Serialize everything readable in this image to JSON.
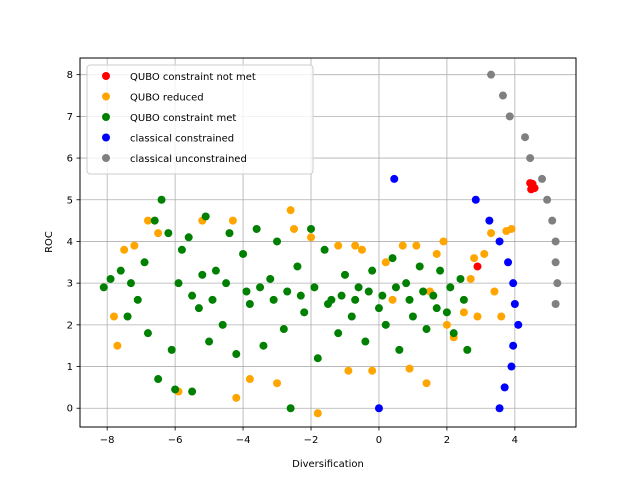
{
  "chart_data": {
    "type": "scatter",
    "xlabel": "Diversification",
    "ylabel": "ROC",
    "xlim": [
      -8.8,
      5.8
    ],
    "ylim": [
      -0.45,
      8.4
    ],
    "x_ticks": [
      -8,
      -6,
      -4,
      -2,
      0,
      2,
      4
    ],
    "x_tick_labels": [
      "−8",
      "−6",
      "−4",
      "−2",
      "0",
      "2",
      "4"
    ],
    "y_ticks": [
      0,
      1,
      2,
      3,
      4,
      5,
      6,
      7,
      8
    ],
    "y_tick_labels": [
      "0",
      "1",
      "2",
      "3",
      "4",
      "5",
      "6",
      "7",
      "8"
    ],
    "grid": true,
    "legend_position": "top-left",
    "series": [
      {
        "name": "QUBO constraint not met",
        "color": "#ff0000",
        "points": [
          [
            2.9,
            3.4
          ],
          [
            4.45,
            5.4
          ],
          [
            4.5,
            5.35
          ],
          [
            4.55,
            5.3
          ],
          [
            4.48,
            5.25
          ],
          [
            4.52,
            5.38
          ],
          [
            4.58,
            5.28
          ]
        ]
      },
      {
        "name": "QUBO reduced",
        "color": "#ffa500",
        "points": [
          [
            -7.8,
            2.2
          ],
          [
            -7.7,
            1.5
          ],
          [
            -7.5,
            3.8
          ],
          [
            -7.2,
            3.9
          ],
          [
            -6.8,
            4.5
          ],
          [
            -6.5,
            4.2
          ],
          [
            -5.9,
            0.4
          ],
          [
            -5.2,
            4.5
          ],
          [
            -4.3,
            4.5
          ],
          [
            -4.2,
            0.25
          ],
          [
            -3.8,
            0.7
          ],
          [
            -2.6,
            4.75
          ],
          [
            -2.5,
            4.3
          ],
          [
            -1.8,
            -0.12
          ],
          [
            -1.2,
            3.9
          ],
          [
            -0.9,
            0.9
          ],
          [
            -0.7,
            3.9
          ],
          [
            -0.5,
            3.8
          ],
          [
            -0.2,
            0.9
          ],
          [
            0.2,
            3.5
          ],
          [
            0.7,
            3.9
          ],
          [
            0.9,
            0.95
          ],
          [
            1.1,
            3.9
          ],
          [
            1.4,
            0.6
          ],
          [
            1.7,
            3.7
          ],
          [
            1.9,
            4.0
          ],
          [
            2.2,
            1.7
          ],
          [
            2.5,
            2.3
          ],
          [
            2.8,
            3.6
          ],
          [
            2.9,
            2.2
          ],
          [
            3.1,
            3.7
          ],
          [
            3.3,
            4.2
          ],
          [
            3.4,
            2.8
          ],
          [
            3.6,
            2.2
          ],
          [
            3.75,
            4.25
          ],
          [
            3.9,
            4.3
          ],
          [
            -3.0,
            0.6
          ],
          [
            -2.0,
            4.1
          ],
          [
            0.4,
            2.6
          ],
          [
            1.5,
            2.8
          ],
          [
            2.0,
            2.0
          ],
          [
            2.7,
            3.1
          ]
        ]
      },
      {
        "name": "QUBO constraint met",
        "color": "#008000",
        "points": [
          [
            -8.1,
            2.9
          ],
          [
            -7.9,
            3.1
          ],
          [
            -7.6,
            3.3
          ],
          [
            -7.4,
            2.2
          ],
          [
            -7.3,
            3.0
          ],
          [
            -7.1,
            2.6
          ],
          [
            -6.9,
            3.5
          ],
          [
            -6.8,
            1.8
          ],
          [
            -6.6,
            4.5
          ],
          [
            -6.5,
            0.7
          ],
          [
            -6.4,
            5.0
          ],
          [
            -6.2,
            4.2
          ],
          [
            -6.1,
            1.4
          ],
          [
            -6.0,
            0.45
          ],
          [
            -5.8,
            3.8
          ],
          [
            -5.6,
            4.1
          ],
          [
            -5.5,
            0.4
          ],
          [
            -5.3,
            2.4
          ],
          [
            -5.1,
            4.6
          ],
          [
            -5.0,
            1.6
          ],
          [
            -4.8,
            3.3
          ],
          [
            -4.6,
            2.0
          ],
          [
            -4.4,
            4.2
          ],
          [
            -4.2,
            1.3
          ],
          [
            -4.0,
            3.7
          ],
          [
            -3.8,
            2.5
          ],
          [
            -3.6,
            4.3
          ],
          [
            -3.4,
            1.5
          ],
          [
            -3.2,
            3.1
          ],
          [
            -3.0,
            4.0
          ],
          [
            -2.8,
            1.9
          ],
          [
            -2.6,
            0.0
          ],
          [
            -2.4,
            3.4
          ],
          [
            -2.2,
            2.3
          ],
          [
            -2.0,
            4.3
          ],
          [
            -1.8,
            1.2
          ],
          [
            -1.6,
            3.8
          ],
          [
            -1.4,
            2.6
          ],
          [
            -1.2,
            1.8
          ],
          [
            -1.0,
            3.2
          ],
          [
            -0.8,
            2.2
          ],
          [
            -0.6,
            2.9
          ],
          [
            -0.4,
            1.6
          ],
          [
            -0.2,
            3.3
          ],
          [
            0.0,
            2.4
          ],
          [
            0.2,
            2.0
          ],
          [
            0.4,
            3.6
          ],
          [
            0.6,
            1.4
          ],
          [
            0.8,
            3.0
          ],
          [
            1.0,
            2.2
          ],
          [
            1.2,
            3.4
          ],
          [
            1.4,
            1.9
          ],
          [
            1.6,
            2.7
          ],
          [
            1.8,
            3.3
          ],
          [
            2.0,
            2.3
          ],
          [
            2.2,
            1.8
          ],
          [
            2.4,
            3.1
          ],
          [
            2.6,
            1.4
          ],
          [
            -5.9,
            3.0
          ],
          [
            -5.5,
            2.7
          ],
          [
            -5.2,
            3.2
          ],
          [
            -4.9,
            2.6
          ],
          [
            -4.5,
            3.0
          ],
          [
            -3.9,
            2.8
          ],
          [
            -3.5,
            2.9
          ],
          [
            -3.1,
            2.6
          ],
          [
            -2.7,
            2.8
          ],
          [
            -2.3,
            2.7
          ],
          [
            -1.9,
            2.9
          ],
          [
            -1.5,
            2.5
          ],
          [
            -1.1,
            2.7
          ],
          [
            -0.7,
            2.6
          ],
          [
            -0.3,
            2.8
          ],
          [
            0.1,
            2.7
          ],
          [
            0.5,
            2.9
          ],
          [
            0.9,
            2.6
          ],
          [
            1.3,
            2.8
          ],
          [
            1.7,
            2.4
          ],
          [
            2.1,
            2.9
          ],
          [
            2.5,
            2.6
          ]
        ]
      },
      {
        "name": "classical constrained",
        "color": "#0000ff",
        "points": [
          [
            0.0,
            0.0
          ],
          [
            0.45,
            5.5
          ],
          [
            2.85,
            5.0
          ],
          [
            3.25,
            4.5
          ],
          [
            3.55,
            4.0
          ],
          [
            3.8,
            3.5
          ],
          [
            3.95,
            3.0
          ],
          [
            4.0,
            2.5
          ],
          [
            4.1,
            2.0
          ],
          [
            3.95,
            1.5
          ],
          [
            3.9,
            1.0
          ],
          [
            3.7,
            0.5
          ],
          [
            3.55,
            0.0
          ]
        ]
      },
      {
        "name": "classical unconstrained",
        "color": "#808080",
        "points": [
          [
            3.3,
            8.0
          ],
          [
            3.65,
            7.5
          ],
          [
            3.85,
            7.0
          ],
          [
            4.3,
            6.5
          ],
          [
            4.45,
            6.0
          ],
          [
            4.8,
            5.5
          ],
          [
            4.95,
            5.0
          ],
          [
            5.1,
            4.5
          ],
          [
            5.2,
            4.0
          ],
          [
            5.2,
            3.5
          ],
          [
            5.25,
            3.0
          ],
          [
            5.2,
            2.5
          ]
        ]
      }
    ]
  }
}
